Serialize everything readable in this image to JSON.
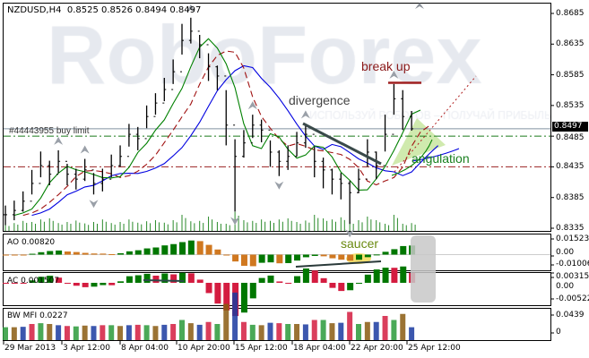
{
  "header": {
    "symbol_timeframe": "NZDUSD,H4",
    "ohlc": "0.8525 0.8526 0.8494 0.8497"
  },
  "watermark": {
    "brand": "RoboForex",
    "tagline": "ИСПОЛЬЗУЙ РОБОТОВ – ПОЛУЧАЙ ПРИБЫЛЬ"
  },
  "annotations": {
    "divergence": "divergence",
    "break_up": "break up",
    "angulation": "angulation",
    "saucer": "saucer",
    "order_line": "#44443955 buy limit"
  },
  "last_price": "0.8497",
  "indicators": {
    "ao_label": "AO 0.00820",
    "ac_label": "AC 0.001507",
    "bwmfi_label": "BW MFI 0.0227"
  },
  "colors": {
    "bull": "#007700",
    "ao_down": "#d07820",
    "ac_down": "#d41c40",
    "jaw": "#0000e0",
    "teeth": "#a01010",
    "lips": "#008000",
    "highlight": "#c8e6a0",
    "saucer": "#f5e070"
  },
  "chart_data": [
    {
      "type": "ohlc",
      "title": "NZDUSD,H4",
      "x_ticks": [
        "29 Mar 2013",
        "3 Apr 12:00",
        "8 Apr 04:00",
        "10 Apr 20:00",
        "15 Apr 12:00",
        "18 Apr 04:00",
        "22 Apr 20:00",
        "25 Apr 12:00"
      ],
      "y_ticks": [
        "0.8685",
        "0.8635",
        "0.8585",
        "0.8535",
        "0.8485",
        "0.8435",
        "0.8385",
        "0.8335"
      ],
      "ylim": [
        0.8335,
        0.8685
      ],
      "close": [
        0.8357,
        0.8364,
        0.8379,
        0.8408,
        0.8437,
        0.8423,
        0.8444,
        0.8423,
        0.8415,
        0.843,
        0.8408,
        0.8415,
        0.8437,
        0.8452,
        0.8488,
        0.8481,
        0.8517,
        0.8539,
        0.8561,
        0.859,
        0.8641,
        0.8656,
        0.8634,
        0.8598,
        0.8583,
        0.8503,
        0.8452,
        0.8474,
        0.8503,
        0.8495,
        0.8459,
        0.8444,
        0.8452,
        0.8474,
        0.8488,
        0.8444,
        0.843,
        0.8415,
        0.8408,
        0.8393,
        0.8415,
        0.8459,
        0.8437,
        0.8488,
        0.8546,
        0.8517,
        0.8497
      ],
      "high": [
        0.8372,
        0.838,
        0.8395,
        0.843,
        0.846,
        0.8445,
        0.8462,
        0.844,
        0.8432,
        0.8448,
        0.8425,
        0.8432,
        0.8455,
        0.847,
        0.8505,
        0.85,
        0.8535,
        0.8555,
        0.858,
        0.861,
        0.8668,
        0.8678,
        0.865,
        0.862,
        0.86,
        0.856,
        0.848,
        0.8495,
        0.852,
        0.8512,
        0.8478,
        0.8462,
        0.847,
        0.8492,
        0.8505,
        0.8468,
        0.845,
        0.8432,
        0.8425,
        0.8412,
        0.8432,
        0.848,
        0.846,
        0.852,
        0.857,
        0.856,
        0.8526
      ],
      "low": [
        0.834,
        0.8348,
        0.8362,
        0.839,
        0.8418,
        0.8405,
        0.8425,
        0.8405,
        0.8398,
        0.8412,
        0.839,
        0.8395,
        0.8418,
        0.8435,
        0.8468,
        0.8462,
        0.8498,
        0.852,
        0.8542,
        0.857,
        0.8618,
        0.8636,
        0.8612,
        0.8575,
        0.856,
        0.847,
        0.8362,
        0.845,
        0.8482,
        0.8475,
        0.8435,
        0.842,
        0.843,
        0.8452,
        0.8466,
        0.8418,
        0.84,
        0.839,
        0.8382,
        0.8342,
        0.8392,
        0.8435,
        0.8415,
        0.846,
        0.852,
        0.8495,
        0.8494
      ],
      "levels": {
        "buy_limit": 0.8497,
        "green_level": 0.8485,
        "red_level": 0.8435,
        "break_up": 0.8572
      }
    },
    {
      "type": "bar",
      "title": "AO 0.00820",
      "y_ticks": [
        "0.01523",
        "0.00",
        "-0.01006"
      ],
      "ylim": [
        -0.01006,
        0.01523
      ]
    },
    {
      "type": "bar",
      "title": "AC 0.001507",
      "y_ticks": [
        "0.003155",
        "0.00",
        "-0.00522"
      ],
      "ylim": [
        -0.00522,
        0.003155
      ]
    },
    {
      "type": "bar",
      "title": "BW MFI 0.0227",
      "y_ticks": [
        "0.0439",
        "0"
      ],
      "ylim": [
        0,
        0.0439
      ]
    }
  ]
}
